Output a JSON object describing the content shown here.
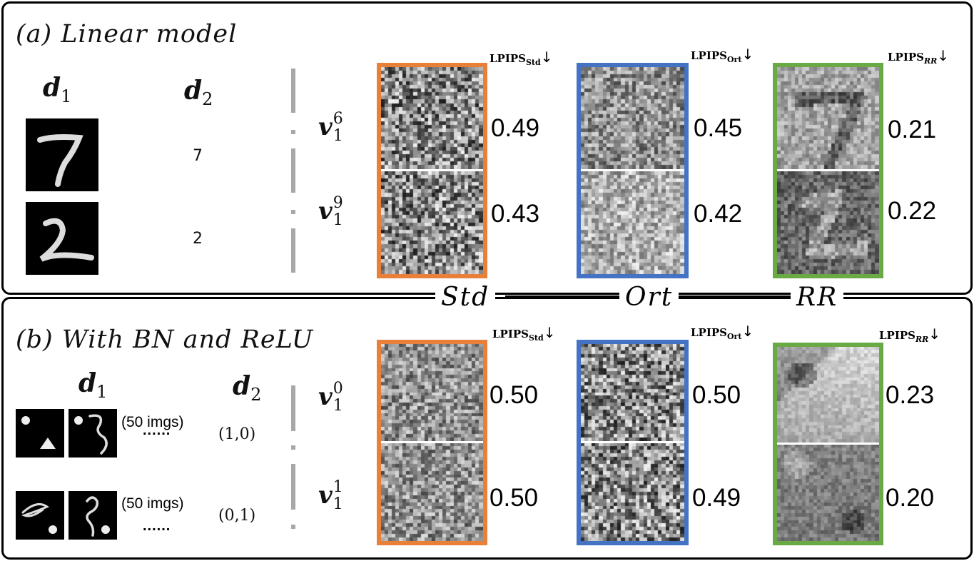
{
  "panel_a": {
    "title": "(a) Linear model",
    "d1_label": "d",
    "d1_sub": "1",
    "d2_label": "d",
    "d2_sub": "2",
    "rows": [
      {
        "d2": "7",
        "v_label": "v",
        "v_sub": "1",
        "v_sup": "6",
        "scores": [
          "0.49",
          "0.45",
          "0.21"
        ]
      },
      {
        "d2": "2",
        "v_label": "v",
        "v_sub": "1",
        "v_sup": "9",
        "scores": [
          "0.43",
          "0.42",
          "0.22"
        ]
      }
    ],
    "metrics": [
      {
        "name": "LPIPS",
        "sub": "Std",
        "arrow": "↓"
      },
      {
        "name": "LPIPS",
        "sub": "Ort",
        "arrow": "↓"
      },
      {
        "name": "LPIPS",
        "sub": "RR",
        "arrow": "↓"
      }
    ]
  },
  "methods": [
    {
      "label": "Std",
      "color": "#e8803a"
    },
    {
      "label": "Ort",
      "color": "#4472c4"
    },
    {
      "label": "RR",
      "color": "#6aaa45"
    }
  ],
  "panel_b": {
    "title": "(b) With BN and ReLU",
    "d1_label": "d",
    "d1_sub": "1",
    "d2_label": "d",
    "d2_sub": "2",
    "rows": [
      {
        "d2": "(1,0)",
        "imgs": "(50 imgs)",
        "dots": "......",
        "v_label": "v",
        "v_sub": "1",
        "v_sup": "0",
        "scores": [
          "0.50",
          "0.50",
          "0.23"
        ]
      },
      {
        "d2": "(0,1)",
        "imgs": "(50 imgs)",
        "dots": "......",
        "v_label": "v",
        "v_sub": "1",
        "v_sup": "1",
        "scores": [
          "0.50",
          "0.49",
          "0.20"
        ]
      }
    ],
    "metrics": [
      {
        "name": "LPIPS",
        "sub": "Std",
        "arrow": "↓"
      },
      {
        "name": "LPIPS",
        "sub": "Ort",
        "arrow": "↓"
      },
      {
        "name": "LPIPS",
        "sub": "RR",
        "arrow": "↓"
      }
    ]
  }
}
